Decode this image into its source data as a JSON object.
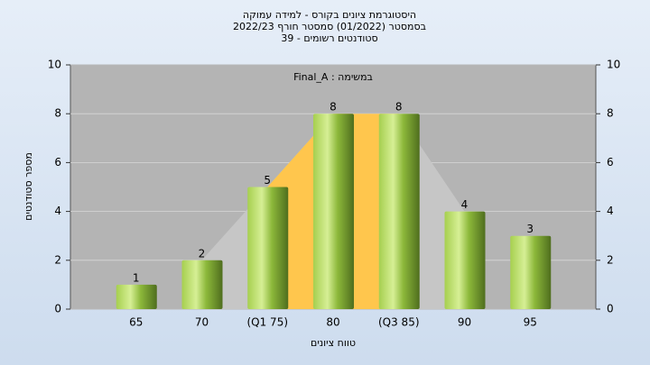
{
  "chart_data": {
    "type": "bar",
    "title_lines": [
      "היסטוגרמת ציונים בקורס - למידה עמוקה",
      "בסמסטר  (01/2022)  סמסטר חורף 2022/23",
      "סטודנטים רשומים - 39"
    ],
    "annotation": "Final_A : במשימה",
    "x_label": "טווח ציונים",
    "y_label": "מספר סטודנטים",
    "categories": [
      "65",
      "70",
      "(Q1 75)",
      "80",
      "(Q3 85)",
      "90",
      "95"
    ],
    "values": [
      1,
      2,
      5,
      8,
      8,
      4,
      3
    ],
    "color": "#8cb83a",
    "ylim": [
      0,
      10
    ],
    "yticks": [
      0,
      2,
      4,
      6,
      8,
      10
    ],
    "grid": true
  }
}
